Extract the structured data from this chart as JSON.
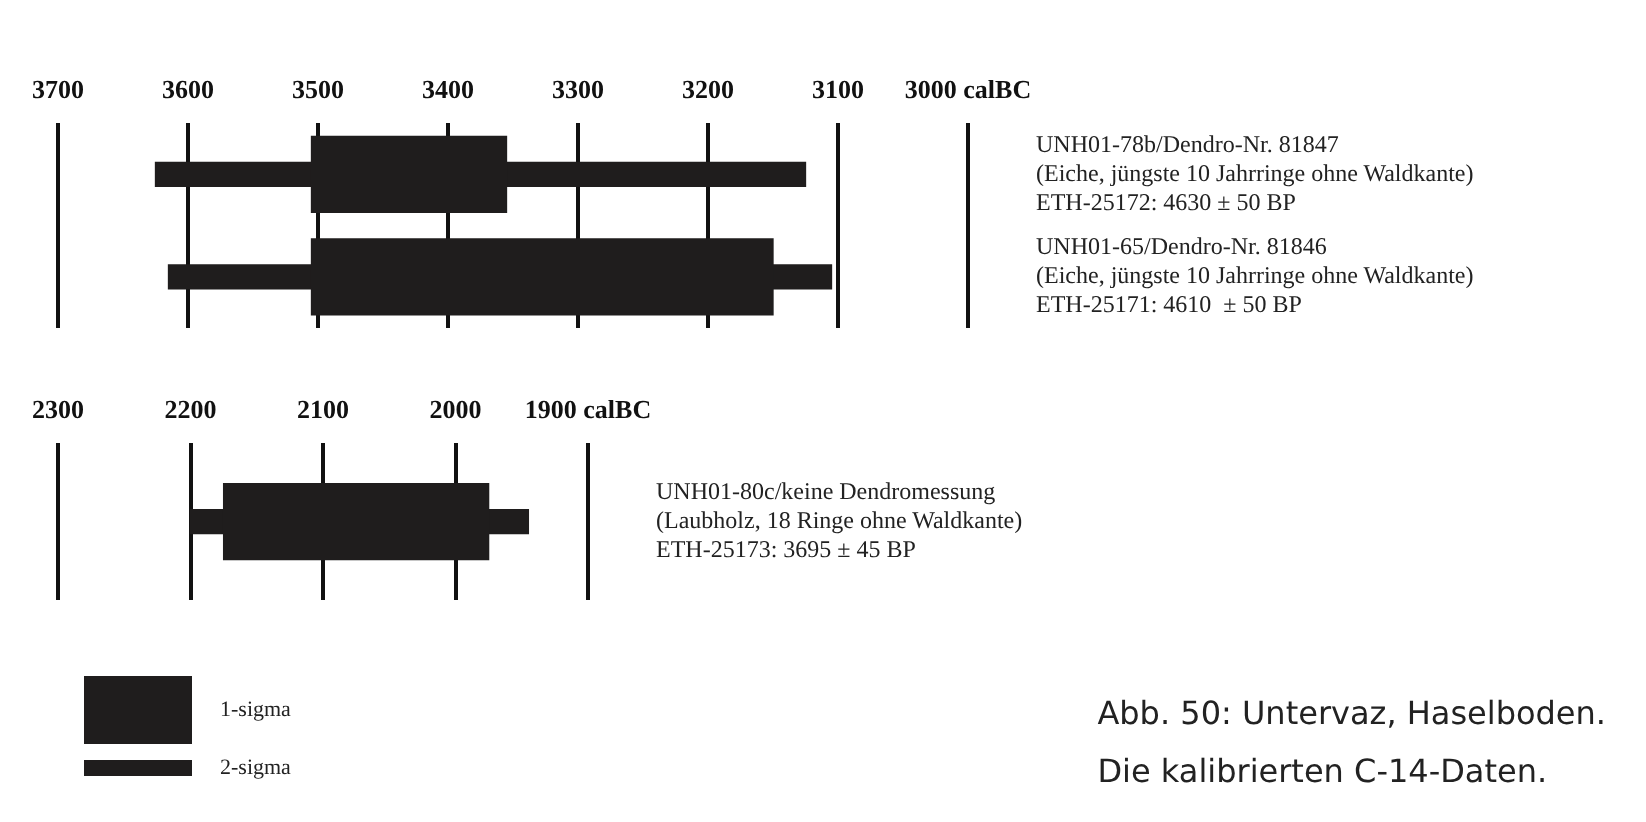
{
  "chart_data": [
    {
      "type": "bar",
      "orientation": "horizontal",
      "categories": [
        "UNH01-78b/Dendro-Nr. 81847\n(Eiche, jüngste 10 Jahrringe ohne Waldkante)\nETH-25172: 4630 ± 50 BP",
        "UNH01-65/Dendro-Nr. 81846\n(Eiche, jüngste 10 Jahrringe ohne Waldkante)\nETH-25171: 4610  ± 50 BP"
      ],
      "series": [
        {
          "color": "#1f1d1d",
          "base": [
            3355,
            3150
          ],
          "values": [
            150,
            355
          ]
        },
        {
          "color": "#1f1d1d",
          "base": [
            3125,
            3105
          ],
          "values": [
            500,
            510
          ]
        }
      ],
      "xlim": [
        3700,
        3000
      ],
      "xticks": [
        3700,
        3600,
        3500,
        3400,
        3300,
        3200,
        3100,
        {
          "value": 3000,
          "label": "3000 calBC"
        }
      ],
      "grid": "x"
    },
    {
      "type": "bar",
      "orientation": "horizontal",
      "categories": [
        "UNH01-80c/keine Dendromessung\n(Laubholz, 18 Ringe ohne Waldkante)\nETH-25173: 3695 ± 45 BP"
      ],
      "series": [
        {
          "name": "1-sigma",
          "color": "#1f1d1d",
          "base": [
            1975
          ],
          "values": [
            200
          ]
        },
        {
          "name": "2-sigma",
          "color": "#1f1d1d",
          "base": [
            1945
          ],
          "values": [
            255
          ]
        }
      ],
      "xlim": [
        2300,
        1900
      ],
      "xticks": [
        2300,
        2200,
        2100,
        2000,
        {
          "value": 1900,
          "label": "1900 calBC"
        }
      ],
      "grid": "x",
      "legend": "bottom left",
      "annotations": [
        "Abb. 50: Untervaz, Haselboden.",
        "Die kalibrierten C-14-Daten."
      ]
    }
  ]
}
